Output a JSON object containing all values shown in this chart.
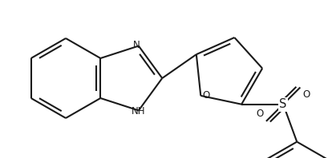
{
  "bg_color": "#ffffff",
  "line_color": "#1a1a1a",
  "line_width": 1.5,
  "font_size": 8.5,
  "figsize": [
    4.1,
    1.98
  ],
  "dpi": 100,
  "xlim": [
    0,
    410
  ],
  "ylim": [
    0,
    198
  ]
}
